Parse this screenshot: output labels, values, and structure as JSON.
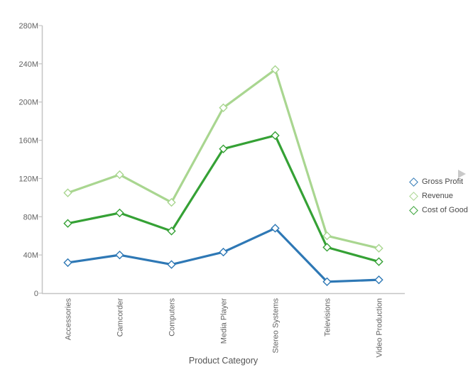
{
  "chart_data": {
    "type": "line",
    "title": "",
    "xlabel": "Product Category",
    "ylabel": "",
    "categories": [
      "Accessories",
      "Camcorder",
      "Computers",
      "Media Player",
      "Stereo Systems",
      "Televisions",
      "Video Production"
    ],
    "series": [
      {
        "name": "Gross Profit",
        "color": "#2e78b5",
        "values": [
          32,
          40,
          30,
          43,
          68,
          12,
          14
        ]
      },
      {
        "name": "Revenue",
        "color": "#a9d690",
        "values": [
          105,
          124,
          95,
          194,
          234,
          60,
          47
        ]
      },
      {
        "name": "Cost of Goods",
        "color": "#35a135",
        "values": [
          73,
          84,
          65,
          151,
          165,
          48,
          33
        ]
      }
    ],
    "draw_order": [
      1,
      2,
      0
    ],
    "ylim": [
      0,
      280
    ],
    "yticks": [
      0,
      40,
      80,
      120,
      160,
      200,
      240,
      280
    ],
    "ytick_labels": [
      "0",
      "40M",
      "80M",
      "120M",
      "160M",
      "200M",
      "240M",
      "280M"
    ],
    "marker": "diamond",
    "marker_fill": "#ffffff",
    "grid": false,
    "legend_position": "right",
    "x_labels_rotated": true
  },
  "legend": {
    "scroll_arrow_icon": "legend-scroll-right"
  },
  "colors": {
    "axis_line": "#c4c4c4",
    "tick_label": "#636363",
    "axis_title": "#555555",
    "legend_text": "#4a4a4a",
    "scroll_arrow": "#c9c9c9",
    "background": "#ffffff"
  }
}
